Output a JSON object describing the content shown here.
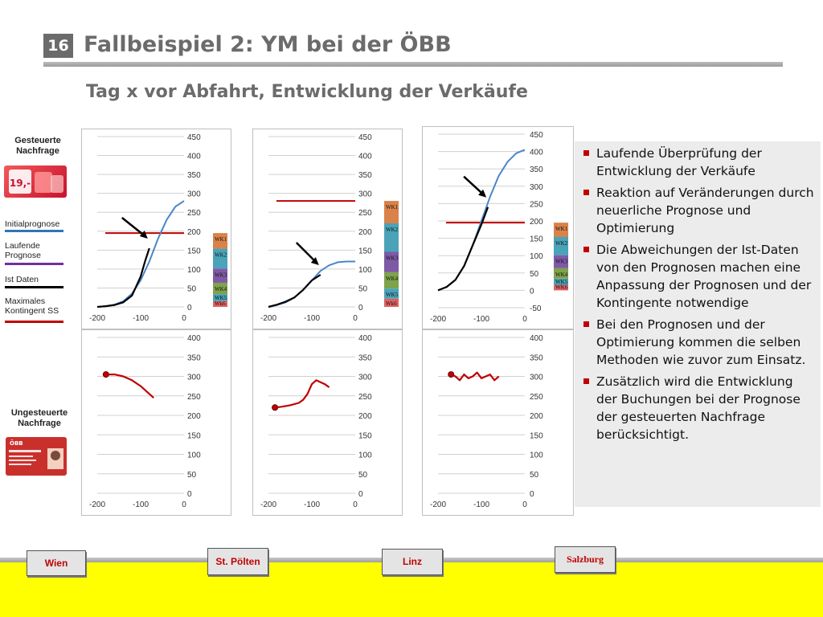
{
  "header": {
    "slide_number": "16",
    "title": "Fallbeispiel 2: YM bei der ÖBB",
    "subtitle": "Tag x vor Abfahrt, Entwicklung der Verkäufe"
  },
  "left_legend": {
    "controlled_label": "Gesteuerte Nachfrage",
    "uncontrolled_label": "Ungesteuerte Nachfrage",
    "items": [
      {
        "label": "Initialprognose",
        "color": "#2e75b6"
      },
      {
        "label": "Laufende Prognose",
        "color": "#7030a0"
      },
      {
        "label": "Ist Daten",
        "color": "#000000"
      },
      {
        "label": "Maximales Kontingent SS",
        "color": "#c00000"
      }
    ],
    "thumb_top_text": "19,-",
    "thumb_bottom_text": "ÖBB"
  },
  "chart_data": [
    {
      "type": "line",
      "panel": "top-1",
      "x_ticks": [
        "-200",
        "-100",
        "0"
      ],
      "y_ticks": [
        "0",
        "50",
        "100",
        "150",
        "200",
        "250",
        "300",
        "350",
        "400",
        "450"
      ],
      "ylim": [
        0,
        450
      ],
      "xlim": [
        -200,
        0
      ],
      "max_contingent": 195,
      "series": [
        {
          "color": "#4a86c8",
          "x": [
            -200,
            -180,
            -160,
            -140,
            -120,
            -100,
            -80,
            -60,
            -40,
            -20,
            0
          ],
          "y": [
            0,
            2,
            6,
            15,
            35,
            70,
            120,
            180,
            230,
            265,
            280
          ]
        },
        {
          "color": "#000000",
          "x": [
            -200,
            -180,
            -160,
            -140,
            -120,
            -100,
            -90,
            -80
          ],
          "y": [
            0,
            2,
            5,
            12,
            30,
            80,
            120,
            155
          ]
        }
      ],
      "bar_labels": [
        "WK1",
        "WK2",
        "WK3",
        "WK4",
        "WK5",
        "Wk6"
      ]
    },
    {
      "type": "line",
      "panel": "top-2",
      "x_ticks": [
        "-200",
        "-100",
        "0"
      ],
      "y_ticks": [
        "0",
        "50",
        "100",
        "150",
        "200",
        "250",
        "300",
        "350",
        "400",
        "450"
      ],
      "ylim": [
        0,
        450
      ],
      "xlim": [
        -200,
        0
      ],
      "max_contingent": 280,
      "series": [
        {
          "color": "#4a86c8",
          "x": [
            -200,
            -180,
            -160,
            -140,
            -120,
            -100,
            -80,
            -60,
            -40,
            -20,
            0
          ],
          "y": [
            0,
            5,
            12,
            25,
            45,
            70,
            95,
            110,
            118,
            120,
            120
          ]
        },
        {
          "color": "#000000",
          "x": [
            -200,
            -180,
            -160,
            -140,
            -120,
            -100,
            -80
          ],
          "y": [
            0,
            6,
            14,
            25,
            45,
            70,
            85
          ]
        }
      ],
      "bar_labels": [
        "WK1",
        "WK2",
        "WK3",
        "WK4",
        "WK5",
        "Wk6"
      ]
    },
    {
      "type": "line",
      "panel": "top-3",
      "x_ticks": [
        "-200",
        "-100",
        "0"
      ],
      "y_ticks": [
        "-50",
        "0",
        "50",
        "100",
        "150",
        "200",
        "250",
        "300",
        "350",
        "400",
        "450"
      ],
      "ylim": [
        -50,
        450
      ],
      "xlim": [
        -200,
        0
      ],
      "max_contingent": 195,
      "series": [
        {
          "color": "#4a86c8",
          "x": [
            -200,
            -180,
            -160,
            -140,
            -120,
            -100,
            -80,
            -60,
            -40,
            -20,
            0
          ],
          "y": [
            0,
            10,
            30,
            70,
            130,
            200,
            270,
            330,
            370,
            395,
            405
          ]
        },
        {
          "color": "#000000",
          "x": [
            -200,
            -180,
            -160,
            -140,
            -120,
            -100,
            -85
          ],
          "y": [
            0,
            10,
            30,
            70,
            130,
            190,
            240
          ]
        }
      ],
      "bar_labels": [
        "WK1",
        "WK2",
        "WK3",
        "WK4",
        "WK5",
        "WK6"
      ]
    },
    {
      "type": "line",
      "panel": "bottom-1",
      "x_ticks": [
        "-200",
        "-100",
        "0"
      ],
      "y_ticks": [
        "0",
        "50",
        "100",
        "150",
        "200",
        "250",
        "300",
        "350",
        "400"
      ],
      "ylim": [
        0,
        400
      ],
      "xlim": [
        -200,
        0
      ],
      "series": [
        {
          "color": "#c00000",
          "x": [
            -180,
            -160,
            -140,
            -120,
            -100,
            -80,
            -70
          ],
          "y": [
            305,
            305,
            300,
            290,
            275,
            255,
            245
          ]
        }
      ]
    },
    {
      "type": "line",
      "panel": "bottom-2",
      "x_ticks": [
        "-200",
        "-100",
        "0"
      ],
      "y_ticks": [
        "0",
        "50",
        "100",
        "150",
        "200",
        "250",
        "300",
        "350",
        "400"
      ],
      "ylim": [
        0,
        400
      ],
      "xlim": [
        -200,
        0
      ],
      "series": [
        {
          "color": "#c00000",
          "x": [
            -185,
            -170,
            -150,
            -130,
            -120,
            -110,
            -100,
            -90,
            -80,
            -70,
            -60
          ],
          "y": [
            220,
            222,
            226,
            232,
            240,
            255,
            280,
            290,
            285,
            280,
            272
          ]
        }
      ]
    },
    {
      "type": "line",
      "panel": "bottom-3",
      "x_ticks": [
        "-200",
        "-100",
        "0"
      ],
      "y_ticks": [
        "0",
        "50",
        "100",
        "150",
        "200",
        "250",
        "300",
        "350",
        "400"
      ],
      "ylim": [
        0,
        400
      ],
      "xlim": [
        -200,
        0
      ],
      "series": [
        {
          "color": "#c00000",
          "x": [
            -170,
            -160,
            -150,
            -140,
            -130,
            -120,
            -110,
            -100,
            -90,
            -80,
            -70,
            -60
          ],
          "y": [
            305,
            300,
            290,
            305,
            295,
            300,
            310,
            295,
            300,
            305,
            290,
            300
          ]
        }
      ]
    }
  ],
  "bullets": [
    "Laufende Überprüfung der Entwicklung der Verkäufe",
    "Reaktion auf Veränderungen durch neuerliche Prognose und Optimierung",
    "Die Abweichungen der Ist-Daten von den Prognosen machen eine Anpassung der Prognosen und der Kontingente notwendige",
    "Bei den Prognosen und der Optimierung kommen die selben Methoden wie zuvor zum Einsatz.",
    "Zusätzlich wird die Entwicklung der Buchungen bei der Prognose der gesteuerten Nachfrage berücksichtigt."
  ],
  "stations": [
    "Wien",
    "St. Pölten",
    "Linz",
    "Salzburg"
  ]
}
